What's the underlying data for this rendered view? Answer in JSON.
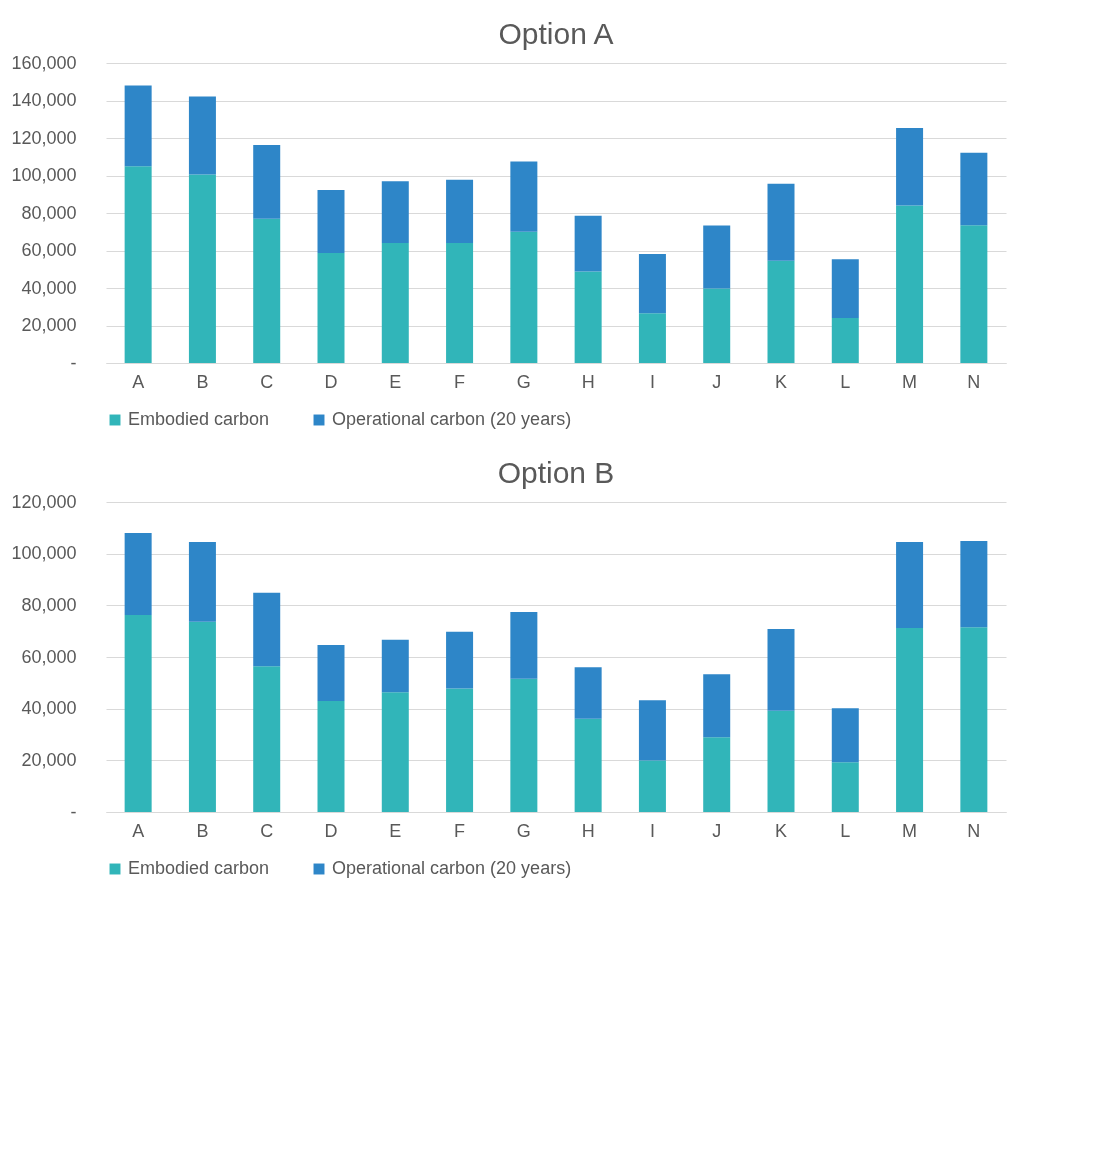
{
  "chart_data": [
    {
      "type": "bar",
      "title": "Option A",
      "stacked": true,
      "grid": "y",
      "legend": "bottom",
      "categories": [
        "A",
        "B",
        "C",
        "D",
        "E",
        "F",
        "G",
        "H",
        "I",
        "J",
        "K",
        "L",
        "M",
        "N"
      ],
      "ylim": [
        0,
        160000
      ],
      "yticks": [
        {
          "value": 0,
          "label": "-"
        },
        {
          "value": 20000,
          "label": "20,000"
        },
        {
          "value": 40000,
          "label": "40,000"
        },
        {
          "value": 60000,
          "label": "60,000"
        },
        {
          "value": 80000,
          "label": "80,000"
        },
        {
          "value": 100000,
          "label": "100,000"
        },
        {
          "value": 120000,
          "label": "120,000"
        },
        {
          "value": 140000,
          "label": "140,000"
        },
        {
          "value": 160000,
          "label": "160,000"
        }
      ],
      "series": [
        {
          "name": "Embodied carbon",
          "color": "#31b5b9",
          "values": [
            105000,
            100500,
            77000,
            58700,
            64000,
            64000,
            70000,
            48800,
            26500,
            39800,
            54500,
            24000,
            84000,
            73500
          ]
        },
        {
          "name": "Operational carbon (20 years)",
          "color": "#2e86c8",
          "values": [
            43000,
            41700,
            39300,
            33600,
            33000,
            33700,
            37500,
            29800,
            31700,
            33600,
            41100,
            31400,
            41400,
            38700
          ]
        }
      ]
    },
    {
      "type": "bar",
      "title": "Option B",
      "stacked": true,
      "grid": "y",
      "legend": "bottom",
      "categories": [
        "A",
        "B",
        "C",
        "D",
        "E",
        "F",
        "G",
        "H",
        "I",
        "J",
        "K",
        "L",
        "M",
        "N"
      ],
      "ylim": [
        0,
        120000
      ],
      "yticks": [
        {
          "value": 0,
          "label": "-"
        },
        {
          "value": 20000,
          "label": "20,000"
        },
        {
          "value": 40000,
          "label": "40,000"
        },
        {
          "value": 60000,
          "label": "60,000"
        },
        {
          "value": 80000,
          "label": "80,000"
        },
        {
          "value": 100000,
          "label": "100,000"
        },
        {
          "value": 120000,
          "label": "120,000"
        }
      ],
      "series": [
        {
          "name": "Embodied carbon",
          "color": "#31b5b9",
          "values": [
            76300,
            73600,
            56400,
            43000,
            46400,
            47800,
            51600,
            36100,
            19900,
            28900,
            39200,
            19300,
            71200,
            71500
          ]
        },
        {
          "name": "Operational carbon (20 years)",
          "color": "#2e86c8",
          "values": [
            31700,
            30900,
            28500,
            21600,
            20300,
            22000,
            25800,
            19900,
            23400,
            24400,
            31600,
            20900,
            33300,
            33400
          ]
        }
      ]
    }
  ]
}
